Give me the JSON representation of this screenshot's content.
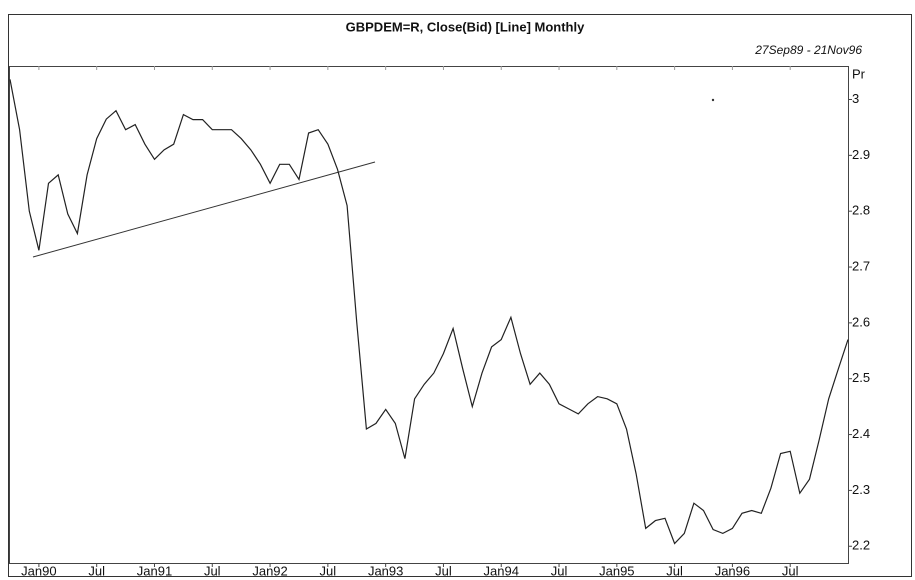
{
  "chart_data": {
    "type": "line",
    "title": "GBPDEM=R, Close(Bid) [Line] Monthly",
    "subtitle": "27Sep89 - 21Nov96",
    "y_label": "Pr",
    "x": [
      -3,
      -2,
      -1,
      0,
      1,
      2,
      3,
      4,
      5,
      6,
      7,
      8,
      9,
      10,
      11,
      12,
      13,
      14,
      15,
      16,
      17,
      18,
      19,
      20,
      21,
      22,
      23,
      24,
      25,
      26,
      27,
      28,
      29,
      30,
      31,
      32,
      33,
      34,
      35,
      36,
      37,
      38,
      39,
      40,
      41,
      42,
      43,
      44,
      45,
      46,
      47,
      48,
      49,
      50,
      51,
      52,
      53,
      54,
      55,
      56,
      57,
      58,
      59,
      60,
      61,
      62,
      63,
      64,
      65,
      66,
      67,
      68,
      69,
      70,
      71,
      72,
      73,
      74,
      75,
      76,
      77,
      78,
      79,
      80,
      81,
      82,
      83,
      84
    ],
    "series": [
      {
        "name": "Close(Bid)",
        "color": "#222222",
        "values": [
          3.036,
          2.946,
          2.8,
          2.73,
          2.85,
          2.865,
          2.795,
          2.76,
          2.865,
          2.93,
          2.965,
          2.98,
          2.946,
          2.955,
          2.92,
          2.893,
          2.91,
          2.92,
          2.973,
          2.964,
          2.964,
          2.946,
          2.946,
          2.946,
          2.93,
          2.91,
          2.884,
          2.85,
          2.884,
          2.884,
          2.857,
          2.94,
          2.946,
          2.92,
          2.875,
          2.81,
          2.6,
          2.41,
          2.42,
          2.445,
          2.42,
          2.357,
          2.464,
          2.49,
          2.51,
          2.545,
          2.59,
          2.518,
          2.45,
          2.51,
          2.557,
          2.57,
          2.61,
          2.545,
          2.49,
          2.51,
          2.49,
          2.455,
          2.446,
          2.437,
          2.455,
          2.468,
          2.464,
          2.455,
          2.41,
          2.33,
          2.232,
          2.246,
          2.25,
          2.205,
          2.223,
          2.277,
          2.264,
          2.23,
          2.223,
          2.232,
          2.259,
          2.264,
          2.259,
          2.304,
          2.366,
          2.37,
          2.295,
          2.32,
          2.39,
          2.464,
          2.518,
          2.57
        ]
      }
    ],
    "xlim": [
      -3,
      84
    ],
    "xticks": [
      {
        "value": 0,
        "label": "Jan90"
      },
      {
        "value": 6,
        "label": "Jul"
      },
      {
        "value": 12,
        "label": "Jan91"
      },
      {
        "value": 18,
        "label": "Jul"
      },
      {
        "value": 24,
        "label": "Jan92"
      },
      {
        "value": 30,
        "label": "Jul"
      },
      {
        "value": 36,
        "label": "Jan93"
      },
      {
        "value": 42,
        "label": "Jul"
      },
      {
        "value": 48,
        "label": "Jan94"
      },
      {
        "value": 54,
        "label": "Jul"
      },
      {
        "value": 60,
        "label": "Jan95"
      },
      {
        "value": 66,
        "label": "Jul"
      },
      {
        "value": 72,
        "label": "Jan96"
      },
      {
        "value": 78,
        "label": "Jul"
      }
    ],
    "ylim": [
      2.17,
      3.06
    ],
    "yticks": [
      2.2,
      2.3,
      2.4,
      2.5,
      2.6,
      2.7,
      2.8,
      2.9,
      3
    ]
  }
}
